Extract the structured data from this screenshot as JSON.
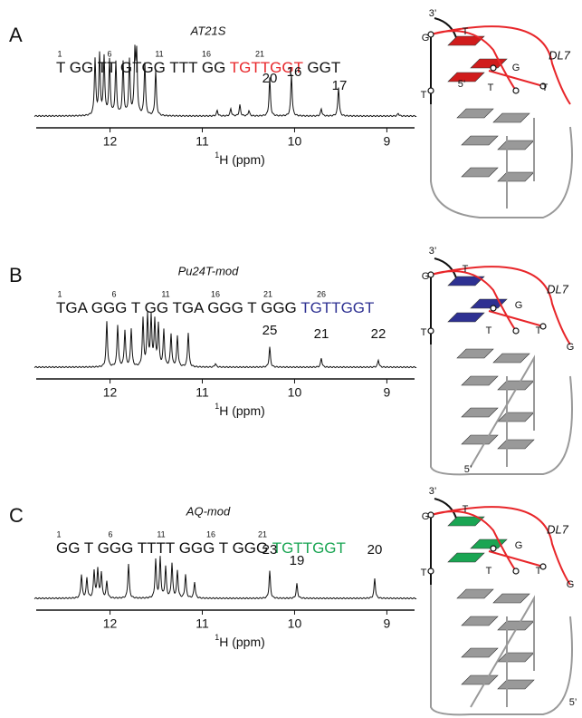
{
  "panels": [
    {
      "letter": "A",
      "title": "AT21S",
      "color": "#e8262a",
      "sequence": {
        "plain": "T GG TT GTGG TTT GG ",
        "highlight": "TGTTGGT",
        "tail": " GGT"
      },
      "position_numbers": [
        "1",
        "6",
        "11",
        "16",
        "21"
      ],
      "peak_labels": [
        "20",
        "16",
        "17"
      ],
      "axis": {
        "xlim": [
          12.8,
          8.7
        ],
        "xticks": [
          12,
          11,
          10,
          9
        ],
        "label_sup": "1",
        "label": "H (ppm)"
      },
      "diagram_labels": [
        "3’",
        "T",
        "G",
        "G",
        "T",
        "5’",
        "T",
        "T",
        "DL7"
      ]
    },
    {
      "letter": "B",
      "title": "Pu24T-mod",
      "color": "#2e3192",
      "sequence": {
        "plain": "TGA GGG T GG TGA GGG T GGG ",
        "highlight": "TGTTGGT",
        "tail": ""
      },
      "position_numbers": [
        "1",
        "6",
        "11",
        "16",
        "21",
        "26"
      ],
      "peak_labels": [
        "25",
        "21",
        "22"
      ],
      "axis": {
        "xlim": [
          12.8,
          8.7
        ],
        "xticks": [
          12,
          11,
          10,
          9
        ],
        "label_sup": "1",
        "label": "H (ppm)"
      },
      "diagram_labels": [
        "3’",
        "T",
        "G",
        "G",
        "T",
        "T",
        "T",
        "G",
        "5’",
        "DL7"
      ]
    },
    {
      "letter": "C",
      "title": "AQ-mod",
      "color": "#1aa553",
      "sequence": {
        "plain": "GG T GGG TTTT GGG T GGG ",
        "highlight": "TGTTGGT",
        "tail": ""
      },
      "position_numbers": [
        "1",
        "6",
        "11",
        "16",
        "21"
      ],
      "peak_labels": [
        "23",
        "19",
        "20"
      ],
      "axis": {
        "xlim": [
          12.8,
          8.7
        ],
        "xticks": [
          12,
          11,
          10,
          9
        ],
        "label_sup": "1",
        "label": "H (ppm)"
      },
      "diagram_labels": [
        "3’",
        "T",
        "G",
        "G",
        "T",
        "T",
        "T",
        "G",
        "5’",
        "DL7"
      ]
    }
  ]
}
